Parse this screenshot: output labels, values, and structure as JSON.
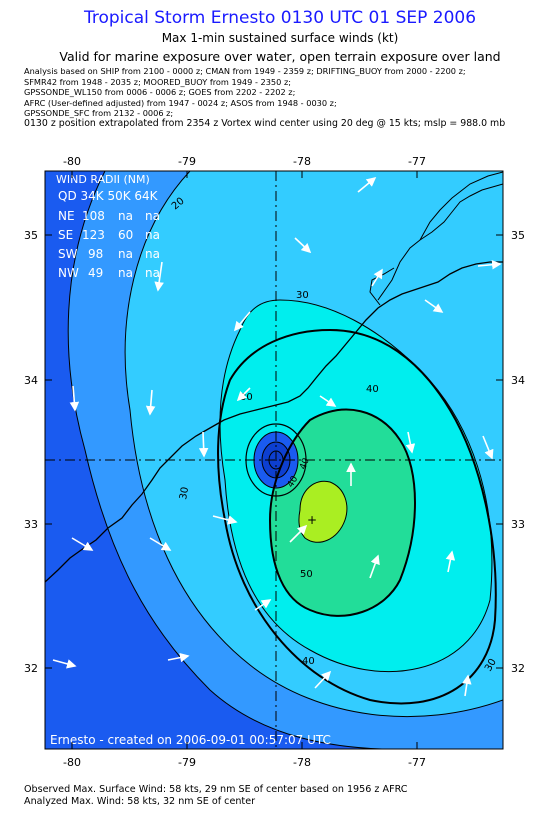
{
  "header": {
    "title": "Tropical Storm Ernesto 0130 UTC 01 SEP 2006",
    "subtitle": "Max 1-min sustained surface winds (kt)",
    "valid": "Valid for marine exposure over water, open terrain exposure over land"
  },
  "analysis_notes": [
    "Analysis based on   SHIP from 2100 - 0000 z;   CMAN from 1949 - 2359 z;   DRIFTING_BUOY from 2000 - 2200 z;",
    "SFMR42 from 1948 - 2035 z;   MOORED_BUOY from 1949 - 2350 z;",
    "GPSSONDE_WL150 from 0006 - 0006 z;   GOES from 2202 - 2202 z;",
    "AFRC (User-defined adjusted) from 1947 - 0024 z;   ASOS from 1948 - 0030 z;",
    "GPSSONDE_SFC from 2132 - 0006 z;"
  ],
  "position_note": "0130 z position extrapolated from 2354 z Vortex wind center using 20 deg @ 15 kts; mslp = 988.0 mb",
  "map": {
    "lon_ticks": [
      "-80",
      "-79",
      "-78",
      "-77"
    ],
    "lat_ticks": [
      "35",
      "34",
      "33",
      "32"
    ],
    "contour_labels": [
      "20",
      "30",
      "30",
      "30",
      "40",
      "40",
      "40",
      "40",
      "50",
      "30"
    ],
    "wind_radii": {
      "title": "WIND RADII (NM)",
      "header": "QD 34K 50K 64K",
      "rows": [
        {
          "qd": "NE",
          "k34": "108",
          "k50": "na",
          "k64": "na"
        },
        {
          "qd": "SE",
          "k34": "123",
          "k50": "60",
          "k64": "na"
        },
        {
          "qd": "SW",
          "k34": "98",
          "k50": "na",
          "k64": "na"
        },
        {
          "qd": "NW",
          "k34": "49",
          "k50": "na",
          "k64": "na"
        }
      ]
    },
    "credit": "Ernesto  -  created on 2006-09-01 00:57:07 UTC",
    "colors": {
      "band_lt20": "#1a5bf0",
      "band_20_30": "#3399ff",
      "band_30_40": "#33ccff",
      "band_40_50": "#00eeee",
      "band_50_60": "#22dd99",
      "band_60p": "#aaee22",
      "land": "#e8e8e8"
    }
  },
  "footer": {
    "observed": "Observed Max. Surface Wind: 58 kts, 29 nm SE of center based on 1956 z AFRC",
    "analyzed": "Analyzed Max. Wind: 58 kts, 32 nm SE of center"
  }
}
